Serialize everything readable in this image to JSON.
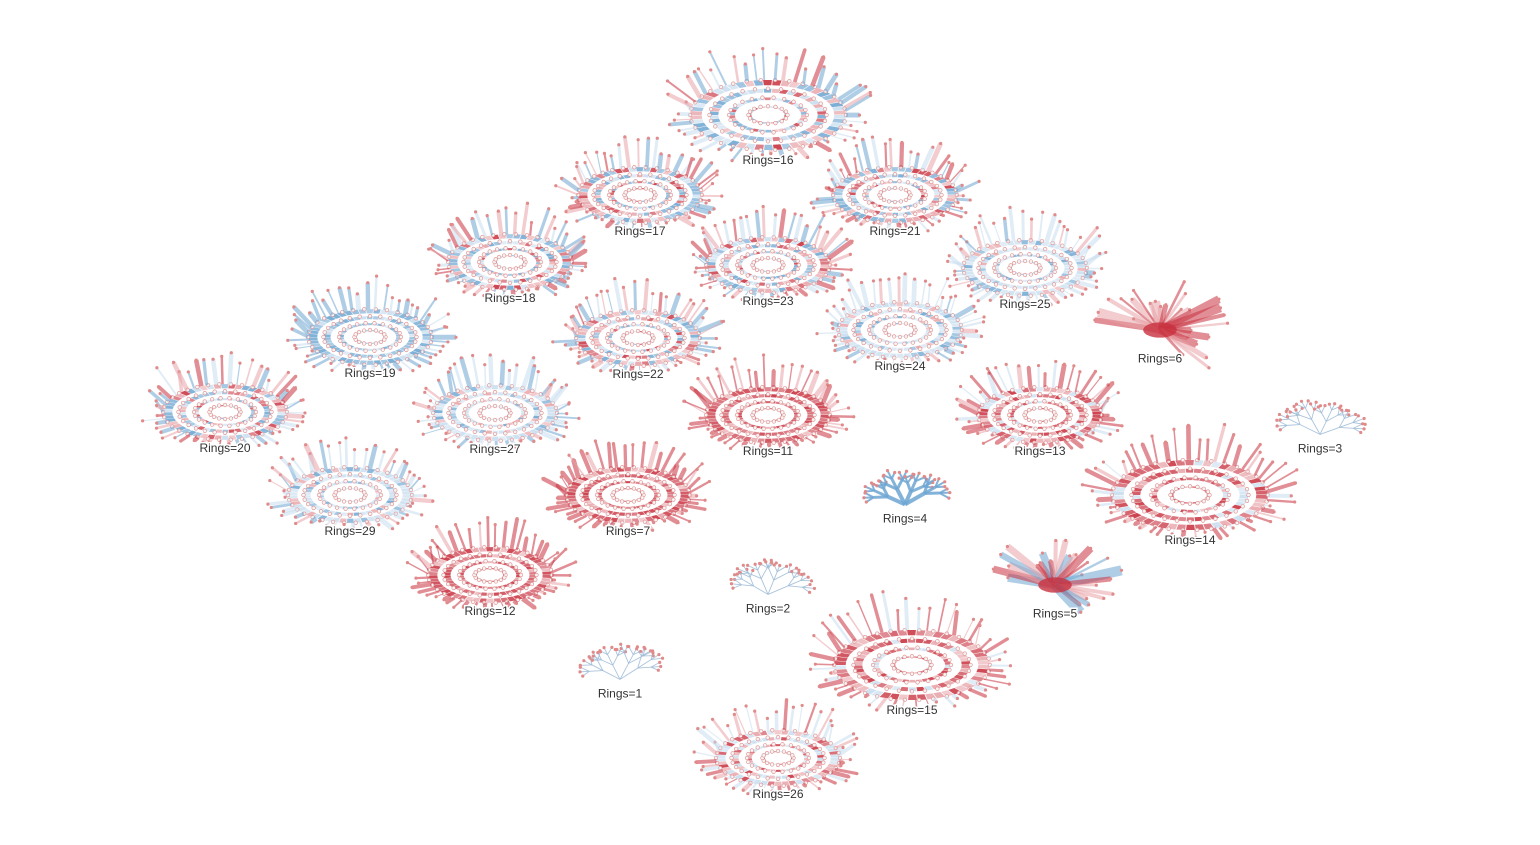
{
  "colors": {
    "red": "#c8313f",
    "red_light": "#e7a3a8",
    "blue": "#6ea6d2",
    "blue_light": "#c7ddef",
    "node": "#e08a8a",
    "link": "#9cbad6"
  },
  "groups": [
    {
      "label": "Rings=16",
      "tone": "mixed",
      "size": "large"
    },
    {
      "label": "Rings=17",
      "tone": "mixed",
      "size": "medium"
    },
    {
      "label": "Rings=21",
      "tone": "mixed",
      "size": "medium"
    },
    {
      "label": "Rings=18",
      "tone": "mixed",
      "size": "medium"
    },
    {
      "label": "Rings=23",
      "tone": "mixed",
      "size": "medium"
    },
    {
      "label": "Rings=25",
      "tone": "light",
      "size": "medium"
    },
    {
      "label": "Rings=19",
      "tone": "blue",
      "size": "medium"
    },
    {
      "label": "Rings=22",
      "tone": "mixed",
      "size": "medium"
    },
    {
      "label": "Rings=24",
      "tone": "light",
      "size": "medium"
    },
    {
      "label": "Rings=6",
      "tone": "fan-red",
      "size": "small"
    },
    {
      "label": "Rings=20",
      "tone": "mixed",
      "size": "medium"
    },
    {
      "label": "Rings=27",
      "tone": "light",
      "size": "medium"
    },
    {
      "label": "Rings=11",
      "tone": "red",
      "size": "medium"
    },
    {
      "label": "Rings=13",
      "tone": "red-mixed",
      "size": "medium"
    },
    {
      "label": "Rings=3",
      "tone": "tree",
      "size": "small"
    },
    {
      "label": "Rings=29",
      "tone": "light",
      "size": "medium"
    },
    {
      "label": "Rings=7",
      "tone": "red",
      "size": "medium"
    },
    {
      "label": "Rings=4",
      "tone": "tree-blue",
      "size": "small"
    },
    {
      "label": "Rings=14",
      "tone": "red-mixed",
      "size": "large"
    },
    {
      "label": "Rings=12",
      "tone": "red",
      "size": "medium"
    },
    {
      "label": "Rings=2",
      "tone": "tree",
      "size": "small"
    },
    {
      "label": "Rings=5",
      "tone": "fan-mixed",
      "size": "small"
    },
    {
      "label": "Rings=1",
      "tone": "tree",
      "size": "small"
    },
    {
      "label": "Rings=15",
      "tone": "red-mixed",
      "size": "large"
    },
    {
      "label": "Rings=26",
      "tone": "light-mixed",
      "size": "medium"
    }
  ]
}
